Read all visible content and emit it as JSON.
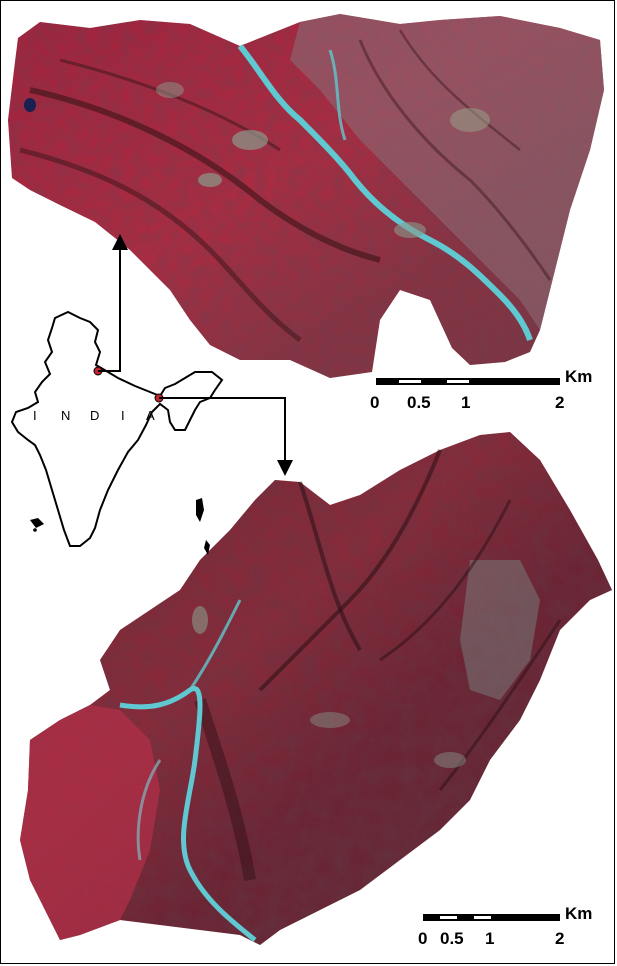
{
  "map": {
    "country_label_letters": [
      "I",
      "N",
      "D",
      "I",
      "A"
    ],
    "colors": {
      "vegetation": "#b0203e",
      "vegetation_dark": "#6e1a2c",
      "shadow": "#3a1a1c",
      "river": "#5fc8d0",
      "bare": "#8a9a8c",
      "outline": "#000000",
      "marker": "#c0242c"
    },
    "top_scalebar": {
      "ticks": [
        "0",
        "0.5",
        "1",
        "2"
      ],
      "unit": "Km"
    },
    "bottom_scalebar": {
      "ticks": [
        "0",
        "0.5",
        "1",
        "2"
      ],
      "unit": "Km"
    }
  }
}
